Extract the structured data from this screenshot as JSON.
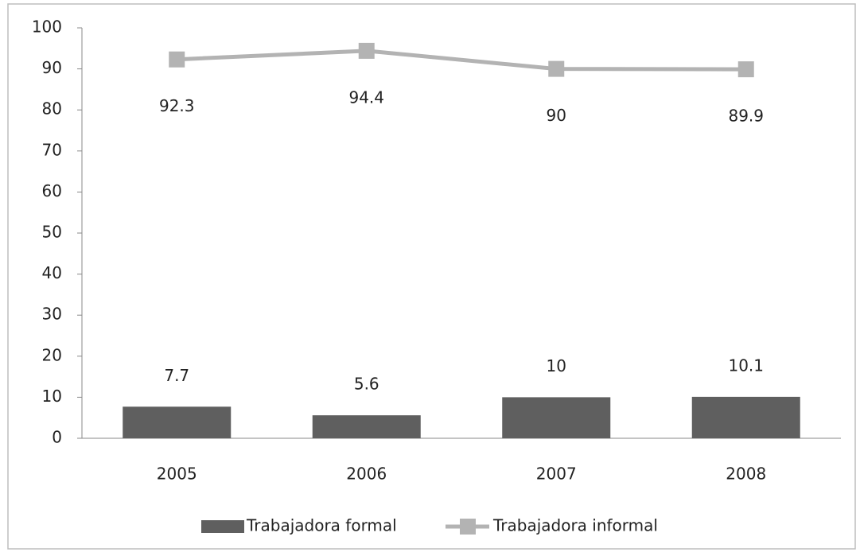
{
  "chart_data": {
    "type": "bar",
    "categories": [
      "2005",
      "2006",
      "2007",
      "2008"
    ],
    "series": [
      {
        "name": "Trabajadora formal",
        "type": "bar",
        "color": "#5f5f5f",
        "values": [
          7.7,
          5.6,
          10,
          10.1
        ]
      },
      {
        "name": "Trabajadora informal",
        "type": "line",
        "color": "#b3b3b3",
        "values": [
          92.3,
          94.4,
          90,
          89.9
        ]
      }
    ],
    "ylim": [
      0,
      100
    ],
    "yticks": [
      0,
      10,
      20,
      30,
      40,
      50,
      60,
      70,
      80,
      90,
      100
    ],
    "grid": false,
    "legend": "bottom"
  }
}
